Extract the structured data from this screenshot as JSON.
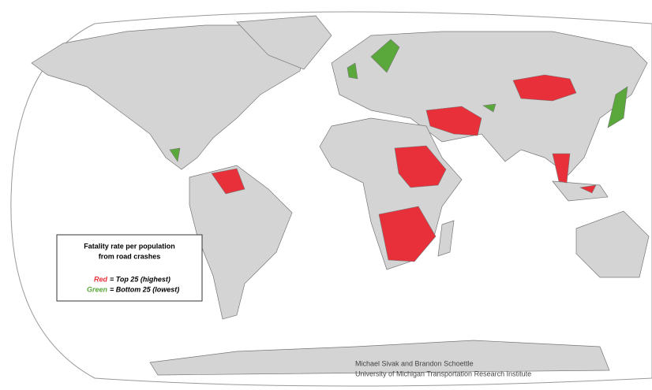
{
  "legend": {
    "title_lines": [
      "Fatality rate per population",
      "from road crashes"
    ],
    "items": [
      {
        "key": "Red",
        "text": "= Top 25 (highest)"
      },
      {
        "key": "Green",
        "text": "= Bottom 25 (lowest)"
      }
    ]
  },
  "credits": [
    "Michael Sivak and Brandon Schoettle",
    "University of Michigan Transportation Research Institute"
  ]
}
